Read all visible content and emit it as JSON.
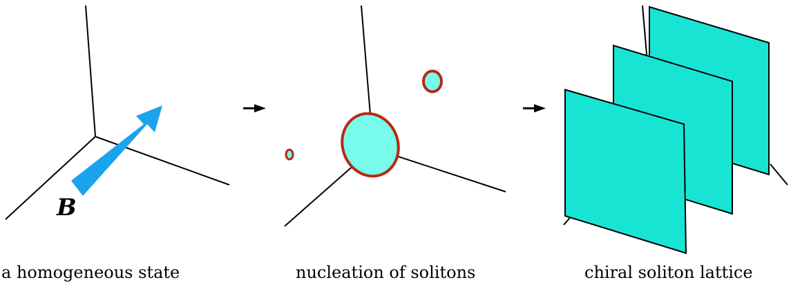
{
  "panels": [
    {
      "caption": "a homogeneous state",
      "field_label": "B"
    },
    {
      "caption": "nucleation of solitons"
    },
    {
      "caption": "chiral soliton lattice"
    }
  ],
  "colors": {
    "field_arrow": "#1aa3ee",
    "soliton_fill": "#78fbea",
    "soliton_outline": "#b52a10",
    "lattice_plane": "#18e4d4",
    "axis": "#000000",
    "transition_arrow": "#000000"
  },
  "icons": {
    "transition": "right-arrow-icon"
  }
}
